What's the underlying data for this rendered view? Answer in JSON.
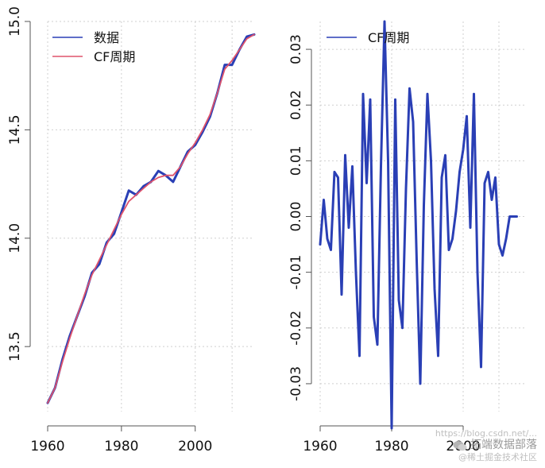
{
  "chart_data": [
    {
      "type": "line",
      "title": "",
      "xlabel": "",
      "ylabel": "",
      "xlim": [
        1960,
        2016
      ],
      "ylim": [
        13.2,
        15.0
      ],
      "x_ticks": [
        1960,
        1980,
        2000
      ],
      "x_tick_labels": [
        "1960",
        "1980",
        "2000"
      ],
      "y_ticks": [
        13.5,
        14.0,
        14.5,
        15.0
      ],
      "y_tick_labels": [
        "13.5",
        "14.0",
        "14.5",
        "15.0"
      ],
      "grid": true,
      "legend": "top-left",
      "x": [
        1960,
        1962,
        1964,
        1966,
        1968,
        1970,
        1972,
        1974,
        1976,
        1978,
        1980,
        1982,
        1984,
        1986,
        1988,
        1990,
        1992,
        1994,
        1996,
        1998,
        2000,
        2002,
        2004,
        2006,
        2008,
        2010,
        2012,
        2014,
        2016
      ],
      "series": [
        {
          "name": "数据",
          "color": "#2a3fb5",
          "values": [
            13.24,
            13.31,
            13.44,
            13.55,
            13.64,
            13.73,
            13.84,
            13.88,
            13.98,
            14.02,
            14.12,
            14.22,
            14.2,
            14.24,
            14.26,
            14.31,
            14.29,
            14.26,
            14.33,
            14.4,
            14.43,
            14.49,
            14.56,
            14.67,
            14.8,
            14.8,
            14.87,
            14.93,
            14.94
          ]
        },
        {
          "name": "CF周期",
          "color": "#df536b",
          "values": [
            13.24,
            13.31,
            13.43,
            13.54,
            13.64,
            13.74,
            13.83,
            13.9,
            13.97,
            14.04,
            14.11,
            14.17,
            14.2,
            14.23,
            14.26,
            14.28,
            14.29,
            14.29,
            14.33,
            14.39,
            14.44,
            14.5,
            14.57,
            14.67,
            14.78,
            14.82,
            14.87,
            14.92,
            14.94
          ]
        }
      ]
    },
    {
      "type": "line",
      "title": "",
      "xlabel": "",
      "ylabel": "",
      "xlim": [
        1960,
        2016
      ],
      "ylim": [
        -0.035,
        0.035
      ],
      "x_ticks": [
        1960,
        1980,
        2000
      ],
      "x_tick_labels": [
        "1960",
        "1980",
        "2000"
      ],
      "y_ticks": [
        -0.03,
        -0.02,
        -0.01,
        0.0,
        0.01,
        0.02,
        0.03
      ],
      "y_tick_labels": [
        "-0.03",
        "-0.02",
        "-0.01",
        "0.00",
        "0.01",
        "0.02",
        "0.03"
      ],
      "grid": true,
      "legend": "top-left",
      "x": [
        1960,
        1961,
        1962,
        1963,
        1964,
        1965,
        1966,
        1967,
        1968,
        1969,
        1970,
        1971,
        1972,
        1973,
        1974,
        1975,
        1976,
        1977,
        1978,
        1979,
        1980,
        1981,
        1982,
        1983,
        1984,
        1985,
        1986,
        1987,
        1988,
        1989,
        1990,
        1991,
        1992,
        1993,
        1994,
        1995,
        1996,
        1997,
        1998,
        1999,
        2000,
        2001,
        2002,
        2003,
        2004,
        2005,
        2006,
        2007,
        2008,
        2009,
        2010,
        2011,
        2012,
        2013,
        2014,
        2015
      ],
      "series": [
        {
          "name": "CF周期",
          "color": "#2a3fb5",
          "values": [
            -0.005,
            0.003,
            -0.004,
            -0.006,
            0.008,
            0.007,
            -0.014,
            0.011,
            -0.002,
            0.009,
            -0.01,
            -0.025,
            0.022,
            0.006,
            0.021,
            -0.018,
            -0.023,
            0.009,
            0.035,
            0.01,
            -0.038,
            0.021,
            -0.015,
            -0.02,
            0.005,
            0.023,
            0.017,
            -0.008,
            -0.03,
            0.002,
            0.022,
            0.01,
            -0.013,
            -0.025,
            0.007,
            0.011,
            -0.006,
            -0.004,
            0.001,
            0.008,
            0.012,
            0.018,
            -0.002,
            0.022,
            -0.01,
            -0.027,
            0.006,
            0.008,
            0.003,
            0.007,
            -0.005,
            -0.007,
            -0.004,
            0.0,
            0.0,
            0.0
          ]
        }
      ]
    }
  ],
  "watermark": {
    "url": "https://blog.csdn.net/...",
    "brand": "拓端数据部落",
    "sub": "@稀土掘金技术社区"
  }
}
